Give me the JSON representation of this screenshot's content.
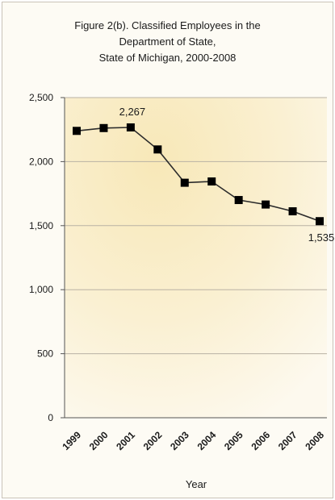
{
  "chart_data": {
    "type": "line",
    "title_lines": [
      "Figure 2(b). Classified Employees in the",
      "Department of State,",
      "State of Michigan, 2000-2008"
    ],
    "xlabel": "Year",
    "ylabel": "",
    "categories": [
      "1999",
      "2000",
      "2001",
      "2002",
      "2003",
      "2004",
      "2005",
      "2006",
      "2007",
      "2008"
    ],
    "series": [
      {
        "values": [
          2240,
          2262,
          2267,
          2095,
          1835,
          1845,
          1700,
          1665,
          1612,
          1535
        ]
      }
    ],
    "ylim": [
      0,
      2500
    ],
    "yticks": [
      0,
      500,
      1000,
      1500,
      2000,
      2500
    ],
    "ytick_labels": [
      "0",
      "500",
      "1,000",
      "1,500",
      "2,000",
      "2,500"
    ],
    "annotations": [
      {
        "index": 2,
        "text": "2,267",
        "position": "above"
      },
      {
        "index": 9,
        "text": "1,535",
        "position": "below"
      }
    ],
    "grid": true,
    "marker": "square",
    "colors": {
      "line": "#2b2b2b",
      "marker": "#000000",
      "grid": "#b9b2a4",
      "plot_bg": "#f8efcf"
    }
  }
}
